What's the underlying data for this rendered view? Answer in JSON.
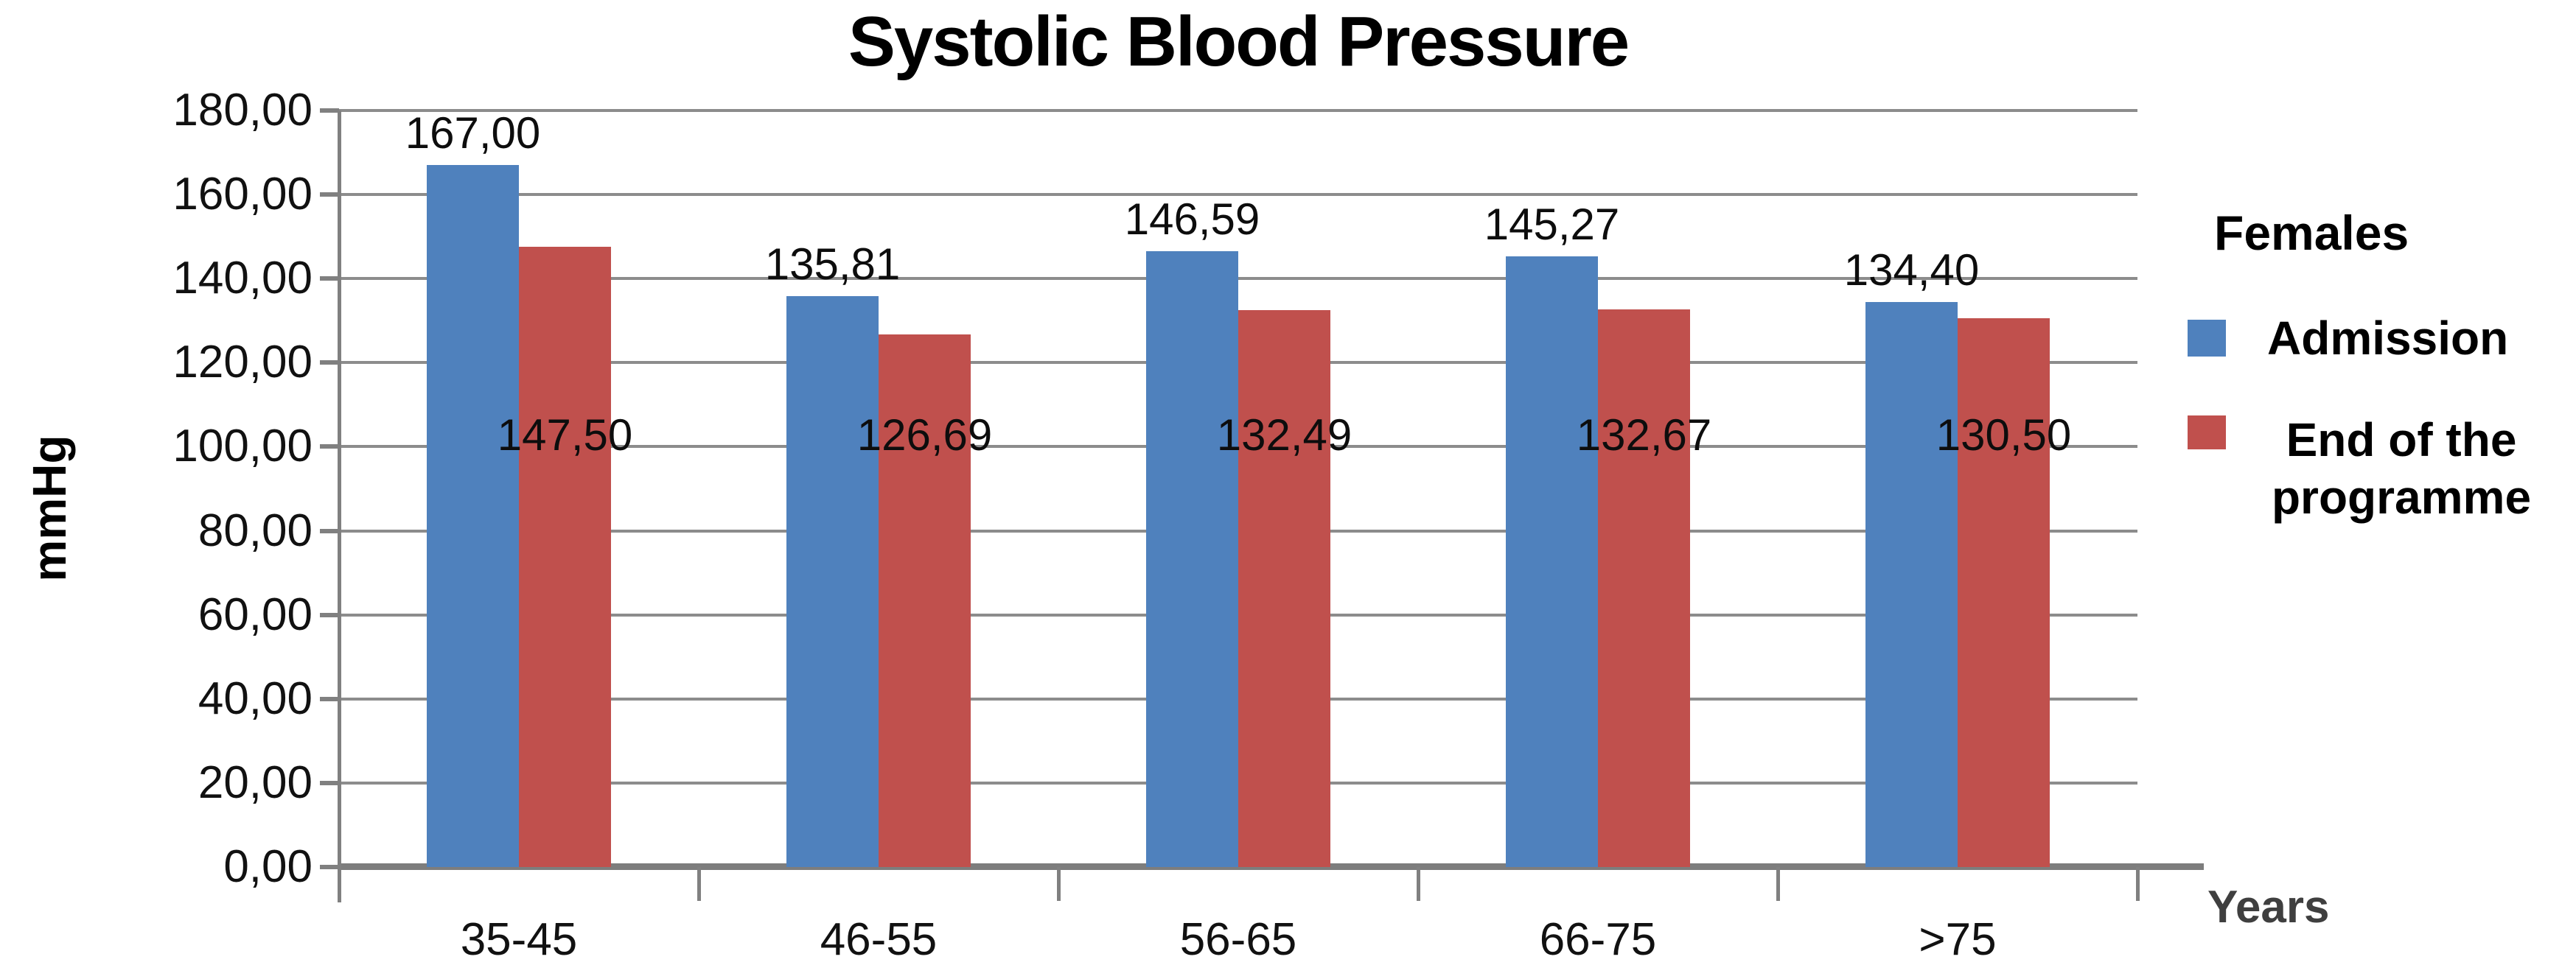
{
  "title": "Systolic Blood Pressure",
  "y_axis": {
    "label": "mmHg",
    "tick_labels": [
      "180,00",
      "160,00",
      "140,00",
      "120,00",
      "100,00",
      "80,00",
      "60,00",
      "40,00",
      "20,00",
      "0,00"
    ]
  },
  "x_axis": {
    "label": "Years",
    "categories": [
      "35-45",
      "46-55",
      "56-65",
      "66-75",
      ">75"
    ]
  },
  "legend": {
    "header": "Females",
    "items": [
      {
        "label": "Admission",
        "color": "#4F81BD"
      },
      {
        "label": "End of the programme",
        "color": "#C0504D"
      }
    ]
  },
  "colors": {
    "admission": "#4F81BD",
    "end_of_programme": "#C0504D",
    "gridline": "#8c8c8c",
    "axis": "#7d7d7d"
  },
  "chart_data": {
    "type": "bar",
    "title": "Systolic Blood Pressure",
    "xlabel": "Years",
    "ylabel": "mmHg",
    "categories": [
      "35-45",
      "46-55",
      "56-65",
      "66-75",
      ">75"
    ],
    "series": [
      {
        "name": "Admission",
        "color": "#4F81BD",
        "values": [
          167.0,
          135.81,
          146.59,
          145.27,
          134.4
        ],
        "value_labels": [
          "167,00",
          "135,81",
          "146,59",
          "145,27",
          "134,40"
        ]
      },
      {
        "name": "End of the programme",
        "color": "#C0504D",
        "values": [
          147.5,
          126.69,
          132.49,
          132.67,
          130.5
        ],
        "value_labels": [
          "147,50",
          "126,69",
          "132,49",
          "132,67",
          "130,50"
        ]
      }
    ],
    "ylim": [
      0,
      180
    ],
    "ytick_step": 20,
    "grid": true,
    "legend_position": "right"
  }
}
